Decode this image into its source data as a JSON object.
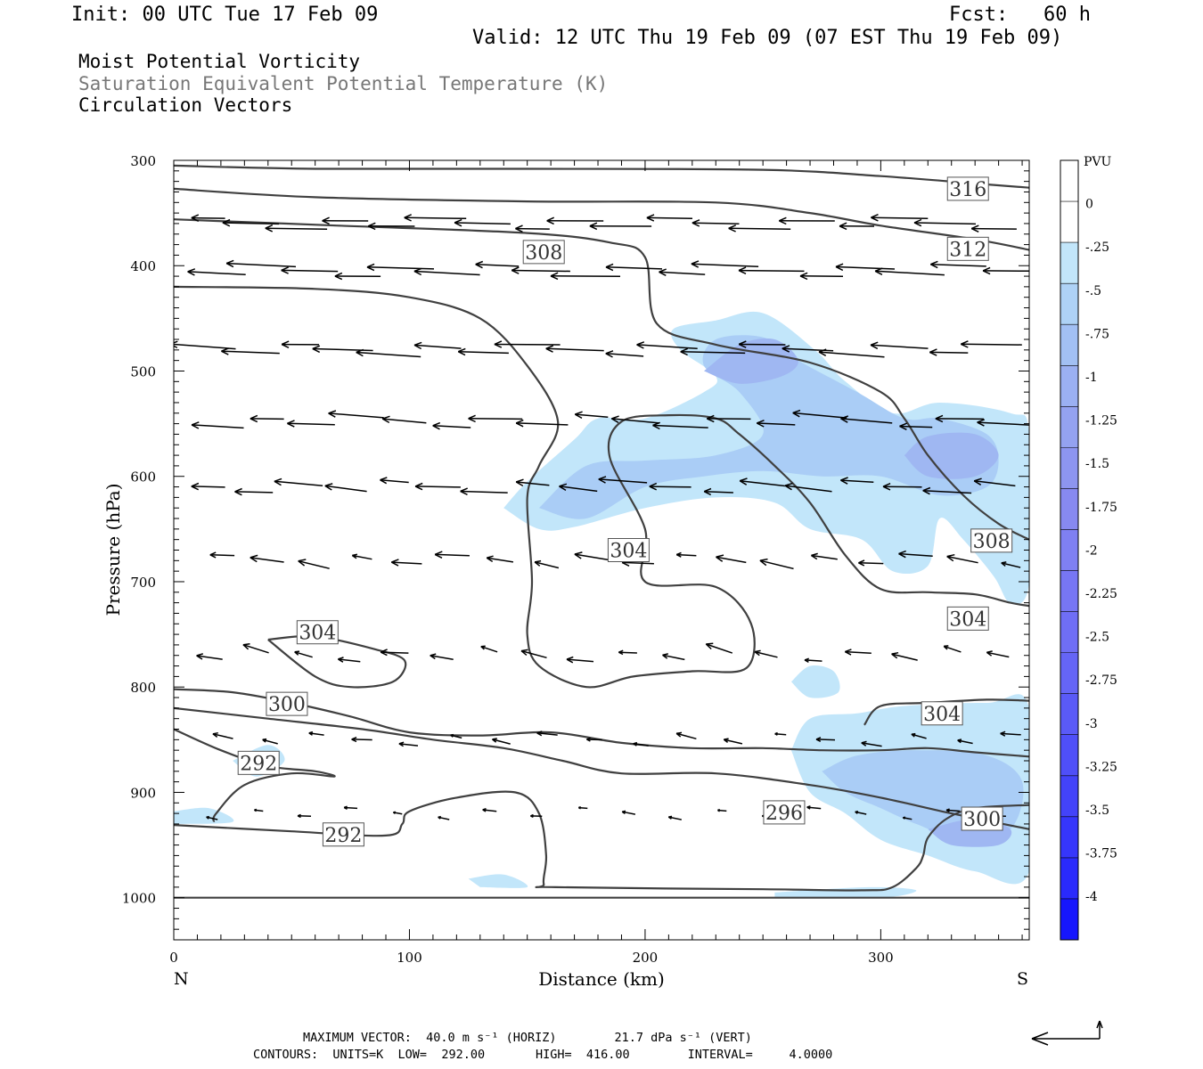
{
  "header": {
    "init": "Init: 00 UTC Tue 17 Feb 09",
    "fcst": "Fcst:   60 h",
    "valid": "Valid: 12 UTC Thu 19 Feb 09 (07 EST Thu 19 Feb 09)",
    "fields": [
      "Moist Potential Vorticity",
      "Saturation Equivalent Potential Temperature (K)",
      "Circulation Vectors"
    ]
  },
  "colors": {
    "axis": "#000000",
    "contour": "#404040",
    "shade_levels": [
      "#c2e6fa",
      "#aacdf6",
      "#9fb7f2",
      "#919ff0",
      "#8a8cf0",
      "#7d7cf2"
    ],
    "colorbar": [
      "#ffffff",
      "#ffffff",
      "#c2e6fa",
      "#aed2f6",
      "#a2c0f4",
      "#9bb0f2",
      "#94a2f0",
      "#8d95f0",
      "#8789f0",
      "#7f80f2",
      "#7776f4",
      "#6f6ef5",
      "#6565f6",
      "#5a5af7",
      "#4f4ff8",
      "#4343f9",
      "#3636fb",
      "#2a2afc",
      "#1616fd"
    ]
  },
  "chart_data": {
    "type": "cross-section",
    "xlabel": "Distance (km)",
    "ylabel": "Pressure (hPa)",
    "xlim": [
      0,
      363
    ],
    "ylim": [
      1040,
      300
    ],
    "x_ticks": [
      0,
      100,
      200,
      300
    ],
    "y_ticks": [
      300,
      400,
      500,
      600,
      700,
      800,
      900,
      1000
    ],
    "endpoints": {
      "left": "N",
      "right": "S"
    },
    "colorbar": {
      "unit": "PVU",
      "labels": [
        "0",
        "-.25",
        "-.5",
        "-.75",
        "-1",
        "-1.25",
        "-1.5",
        "-1.75",
        "-2",
        "-2.25",
        "-2.5",
        "-2.75",
        "-3",
        "-3.25",
        "-3.5",
        "-3.75",
        "-4"
      ]
    },
    "theta_es_contours": [
      {
        "level": 316,
        "points": [
          [
            0,
            305
          ],
          [
            60,
            308
          ],
          [
            150,
            308
          ],
          [
            250,
            309
          ],
          [
            300,
            315
          ],
          [
            340,
            322
          ],
          [
            363,
            326
          ]
        ]
      },
      {
        "level": 312,
        "points": [
          [
            0,
            327
          ],
          [
            60,
            335
          ],
          [
            150,
            339
          ],
          [
            230,
            340
          ],
          [
            270,
            350
          ],
          [
            300,
            362
          ],
          [
            340,
            375
          ],
          [
            363,
            385
          ]
        ]
      },
      {
        "level": 308,
        "points": [
          [
            0,
            356
          ],
          [
            70,
            362
          ],
          [
            150,
            369
          ],
          [
            185,
            378
          ],
          [
            200,
            392
          ],
          [
            205,
            455
          ],
          [
            230,
            475
          ],
          [
            270,
            492
          ],
          [
            300,
            520
          ],
          [
            310,
            545
          ],
          [
            320,
            580
          ],
          [
            335,
            618
          ],
          [
            350,
            645
          ],
          [
            363,
            660
          ]
        ]
      },
      {
        "level": 304,
        "points": [
          [
            0,
            420
          ],
          [
            60,
            422
          ],
          [
            100,
            430
          ],
          [
            130,
            450
          ],
          [
            150,
            495
          ],
          [
            163,
            548
          ],
          [
            155,
            590
          ],
          [
            150,
            620
          ],
          [
            152,
            700
          ],
          [
            150,
            750
          ],
          [
            155,
            780
          ],
          [
            175,
            800
          ],
          [
            195,
            790
          ],
          [
            220,
            785
          ],
          [
            243,
            782
          ],
          [
            245,
            740
          ],
          [
            230,
            705
          ],
          [
            200,
            700
          ],
          [
            200,
            650
          ],
          [
            185,
            582
          ],
          [
            190,
            548
          ],
          [
            210,
            542
          ],
          [
            230,
            545
          ],
          [
            240,
            560
          ],
          [
            255,
            590
          ],
          [
            270,
            625
          ],
          [
            285,
            675
          ],
          [
            300,
            707
          ],
          [
            320,
            710
          ],
          [
            340,
            712
          ],
          [
            355,
            720
          ],
          [
            363,
            723
          ]
        ]
      },
      {
        "level": 304,
        "points": [
          [
            40,
            755
          ],
          [
            60,
            752
          ],
          [
            85,
            764
          ],
          [
            98,
            775
          ],
          [
            93,
            795
          ],
          [
            75,
            800
          ],
          [
            60,
            790
          ],
          [
            40,
            755
          ]
        ]
      },
      {
        "level": 304,
        "points": [
          [
            293,
            836
          ],
          [
            300,
            818
          ],
          [
            320,
            815
          ],
          [
            345,
            812
          ],
          [
            363,
            813
          ]
        ]
      },
      {
        "level": 300,
        "points": [
          [
            0,
            802
          ],
          [
            25,
            805
          ],
          [
            50,
            815
          ],
          [
            75,
            828
          ],
          [
            100,
            843
          ],
          [
            130,
            846
          ],
          [
            160,
            843
          ],
          [
            190,
            853
          ],
          [
            220,
            858
          ],
          [
            250,
            858
          ],
          [
            275,
            860
          ],
          [
            300,
            860
          ],
          [
            320,
            858
          ],
          [
            340,
            862
          ],
          [
            363,
            866
          ]
        ]
      },
      {
        "level": 296,
        "points": [
          [
            0,
            820
          ],
          [
            40,
            830
          ],
          [
            80,
            840
          ],
          [
            110,
            850
          ],
          [
            140,
            858
          ],
          [
            165,
            870
          ],
          [
            190,
            882
          ],
          [
            230,
            882
          ],
          [
            270,
            893
          ],
          [
            300,
            905
          ],
          [
            330,
            920
          ],
          [
            363,
            935
          ]
        ]
      },
      {
        "level": 292,
        "points": [
          [
            0,
            840
          ],
          [
            20,
            860
          ],
          [
            40,
            875
          ],
          [
            60,
            880
          ],
          [
            68,
            885
          ],
          [
            50,
            882
          ],
          [
            30,
            893
          ],
          [
            18,
            920
          ],
          [
            17,
            928
          ]
        ]
      },
      {
        "level": 292,
        "points": [
          [
            0,
            931
          ],
          [
            50,
            937
          ],
          [
            90,
            941
          ],
          [
            97,
            930
          ],
          [
            100,
            918
          ],
          [
            120,
            905
          ],
          [
            145,
            900
          ],
          [
            155,
            920
          ],
          [
            158,
            960
          ],
          [
            157,
            987
          ],
          [
            162,
            990
          ],
          [
            250,
            992
          ],
          [
            292,
            993
          ],
          [
            305,
            990
          ],
          [
            315,
            972
          ],
          [
            318,
            960
          ],
          [
            320,
            943
          ],
          [
            328,
            925
          ],
          [
            340,
            915
          ],
          [
            363,
            912
          ]
        ]
      },
      {
        "level": 292,
        "points": [
          [
            0,
            1000
          ],
          [
            363,
            1000
          ]
        ]
      }
    ],
    "mpv_regions": [
      {
        "level": -0.25,
        "points": [
          [
            140,
            630
          ],
          [
            150,
            605
          ],
          [
            170,
            565
          ],
          [
            180,
            545
          ],
          [
            200,
            545
          ],
          [
            225,
            520
          ],
          [
            230,
            505
          ],
          [
            215,
            480
          ],
          [
            212,
            460
          ],
          [
            230,
            452
          ],
          [
            250,
            445
          ],
          [
            272,
            480
          ],
          [
            285,
            510
          ],
          [
            305,
            540
          ],
          [
            325,
            530
          ],
          [
            355,
            540
          ],
          [
            363,
            560
          ],
          [
            363,
            700
          ],
          [
            355,
            720
          ],
          [
            348,
            695
          ],
          [
            335,
            660
          ],
          [
            325,
            640
          ],
          [
            320,
            685
          ],
          [
            305,
            690
          ],
          [
            292,
            660
          ],
          [
            270,
            650
          ],
          [
            255,
            625
          ],
          [
            230,
            620
          ],
          [
            200,
            630
          ],
          [
            170,
            648
          ],
          [
            155,
            650
          ],
          [
            140,
            630
          ]
        ]
      },
      {
        "level": -0.5,
        "points": [
          [
            155,
            630
          ],
          [
            175,
            590
          ],
          [
            200,
            585
          ],
          [
            230,
            580
          ],
          [
            250,
            560
          ],
          [
            240,
            520
          ],
          [
            225,
            495
          ],
          [
            230,
            470
          ],
          [
            250,
            468
          ],
          [
            265,
            490
          ],
          [
            290,
            520
          ],
          [
            310,
            545
          ],
          [
            325,
            545
          ],
          [
            345,
            560
          ],
          [
            350,
            585
          ],
          [
            345,
            610
          ],
          [
            325,
            618
          ],
          [
            300,
            600
          ],
          [
            275,
            600
          ],
          [
            250,
            595
          ],
          [
            225,
            600
          ],
          [
            200,
            610
          ],
          [
            175,
            640
          ],
          [
            155,
            630
          ]
        ]
      },
      {
        "level": -0.75,
        "points": [
          [
            225,
            500
          ],
          [
            240,
            475
          ],
          [
            255,
            470
          ],
          [
            265,
            490
          ],
          [
            258,
            505
          ],
          [
            240,
            512
          ],
          [
            225,
            500
          ]
        ]
      },
      {
        "level": -0.75,
        "points": [
          [
            310,
            580
          ],
          [
            320,
            562
          ],
          [
            340,
            560
          ],
          [
            350,
            580
          ],
          [
            340,
            600
          ],
          [
            320,
            600
          ],
          [
            310,
            580
          ]
        ]
      },
      {
        "level": -0.25,
        "points": [
          [
            262,
            795
          ],
          [
            270,
            780
          ],
          [
            280,
            785
          ],
          [
            282,
            805
          ],
          [
            270,
            810
          ],
          [
            262,
            795
          ]
        ]
      },
      {
        "level": -0.25,
        "points": [
          [
            262,
            860
          ],
          [
            270,
            830
          ],
          [
            290,
            825
          ],
          [
            310,
            818
          ],
          [
            345,
            815
          ],
          [
            363,
            820
          ],
          [
            363,
            975
          ],
          [
            340,
            975
          ],
          [
            320,
            960
          ],
          [
            300,
            945
          ],
          [
            285,
            920
          ],
          [
            270,
            900
          ],
          [
            262,
            860
          ]
        ]
      },
      {
        "level": -0.5,
        "points": [
          [
            275,
            880
          ],
          [
            290,
            865
          ],
          [
            315,
            860
          ],
          [
            345,
            865
          ],
          [
            360,
            890
          ],
          [
            355,
            935
          ],
          [
            335,
            945
          ],
          [
            315,
            930
          ],
          [
            300,
            915
          ],
          [
            285,
            900
          ],
          [
            275,
            880
          ]
        ]
      },
      {
        "level": -0.75,
        "points": [
          [
            320,
            935
          ],
          [
            340,
            925
          ],
          [
            355,
            935
          ],
          [
            350,
            950
          ],
          [
            330,
            950
          ],
          [
            320,
            935
          ]
        ]
      },
      {
        "level": -0.25,
        "points": [
          [
            25,
            870
          ],
          [
            40,
            855
          ],
          [
            47,
            870
          ],
          [
            35,
            885
          ],
          [
            25,
            870
          ]
        ]
      },
      {
        "level": -0.25,
        "points": [
          [
            0,
            918
          ],
          [
            15,
            915
          ],
          [
            25,
            928
          ],
          [
            0,
            930
          ]
        ]
      },
      {
        "level": -0.25,
        "points": [
          [
            125,
            982
          ],
          [
            140,
            978
          ],
          [
            150,
            990
          ],
          [
            130,
            990
          ]
        ]
      },
      {
        "level": -0.25,
        "points": [
          [
            255,
            995
          ],
          [
            295,
            990
          ],
          [
            315,
            993
          ],
          [
            300,
            1000
          ],
          [
            255,
            1000
          ]
        ]
      }
    ],
    "contour_labels": [
      {
        "text": "316",
        "x": 337,
        "y": 327
      },
      {
        "text": "312",
        "x": 337,
        "y": 384
      },
      {
        "text": "308",
        "x": 157,
        "y": 387
      },
      {
        "text": "308",
        "x": 347,
        "y": 661
      },
      {
        "text": "304",
        "x": 193,
        "y": 670
      },
      {
        "text": "304",
        "x": 61,
        "y": 748
      },
      {
        "text": "304",
        "x": 337,
        "y": 735
      },
      {
        "text": "304",
        "x": 326,
        "y": 825
      },
      {
        "text": "300",
        "x": 48,
        "y": 816
      },
      {
        "text": "296",
        "x": 259,
        "y": 919
      },
      {
        "text": "300",
        "x": 343,
        "y": 925
      },
      {
        "text": "292",
        "x": 36,
        "y": 872
      },
      {
        "text": "292",
        "x": 72,
        "y": 940
      }
    ],
    "vector_scale": {
      "horizontal_m_s": 40.0,
      "vertical_dPa_s": 21.7
    }
  },
  "footer": {
    "maxvec": "MAXIMUM VECTOR:  40.0 m s⁻¹ (HORIZ)        21.7 dPa s⁻¹ (VERT)",
    "contours": "CONTOURS:  UNITS=K  LOW=  292.00       HIGH=  416.00        INTERVAL=     4.0000"
  }
}
